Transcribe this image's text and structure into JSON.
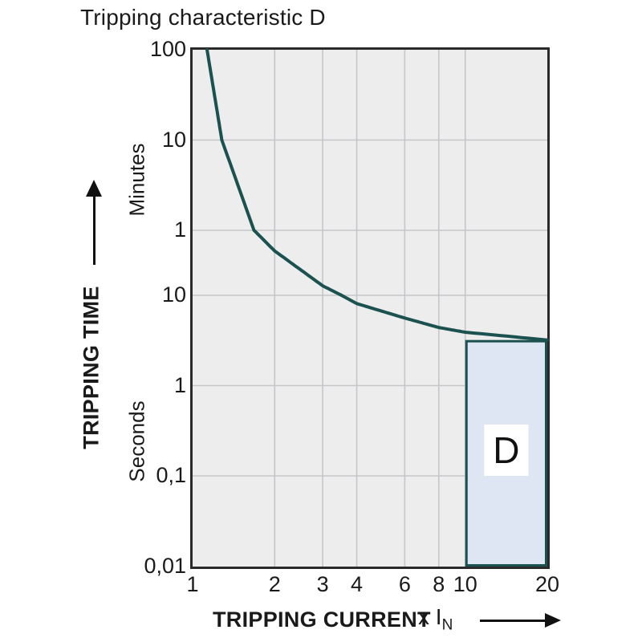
{
  "title": "Tripping characteristic D",
  "colors": {
    "curve": "#1b514f",
    "region_fill": "#dfe6f3",
    "plot_background": "#ededed",
    "gridline": "#c6c6ca",
    "plot_border": "#2a2a2a",
    "text": "#1a1a1a"
  },
  "y_axis": {
    "label": "TRIPPING TIME",
    "unit_upper": "Minutes",
    "unit_lower": "Seconds"
  },
  "x_axis": {
    "label": "TRIPPING CURRENT",
    "multiplier_prefix": "x I",
    "multiplier_sub": "N"
  },
  "chart_data": {
    "type": "line",
    "title": "Tripping characteristic D",
    "xlabel": "TRIPPING CURRENT x IN",
    "ylabel": "TRIPPING TIME",
    "x_scale": "log",
    "x_range": [
      1,
      20
    ],
    "x_ticks": [
      1,
      2,
      3,
      4,
      6,
      8,
      10,
      20
    ],
    "grid": true,
    "y_ticks": [
      {
        "label": "100",
        "seconds": 6000,
        "unit": "minutes"
      },
      {
        "label": "10",
        "seconds": 600,
        "unit": "minutes"
      },
      {
        "label": "1",
        "seconds": 60,
        "unit": "minutes"
      },
      {
        "label": "10",
        "seconds": 10,
        "unit": "seconds"
      },
      {
        "label": "1",
        "seconds": 1,
        "unit": "seconds"
      },
      {
        "label": "0,1",
        "seconds": 0.1,
        "unit": "seconds"
      },
      {
        "label": "0,01",
        "seconds": 0.01,
        "unit": "seconds"
      }
    ],
    "series": [
      {
        "name": "tripping-curve",
        "points_x_in_vs_seconds": [
          [
            1.13,
            6000
          ],
          [
            1.28,
            600
          ],
          [
            1.68,
            60
          ],
          [
            2,
            34
          ],
          [
            3,
            13
          ],
          [
            4,
            8.1
          ],
          [
            6,
            5.6
          ],
          [
            8,
            4.4
          ],
          [
            10,
            3.9
          ],
          [
            20,
            3.2
          ]
        ]
      }
    ],
    "region": {
      "label": "D",
      "x_range": [
        10,
        20
      ],
      "seconds_range": [
        0.01,
        3.2
      ]
    }
  }
}
